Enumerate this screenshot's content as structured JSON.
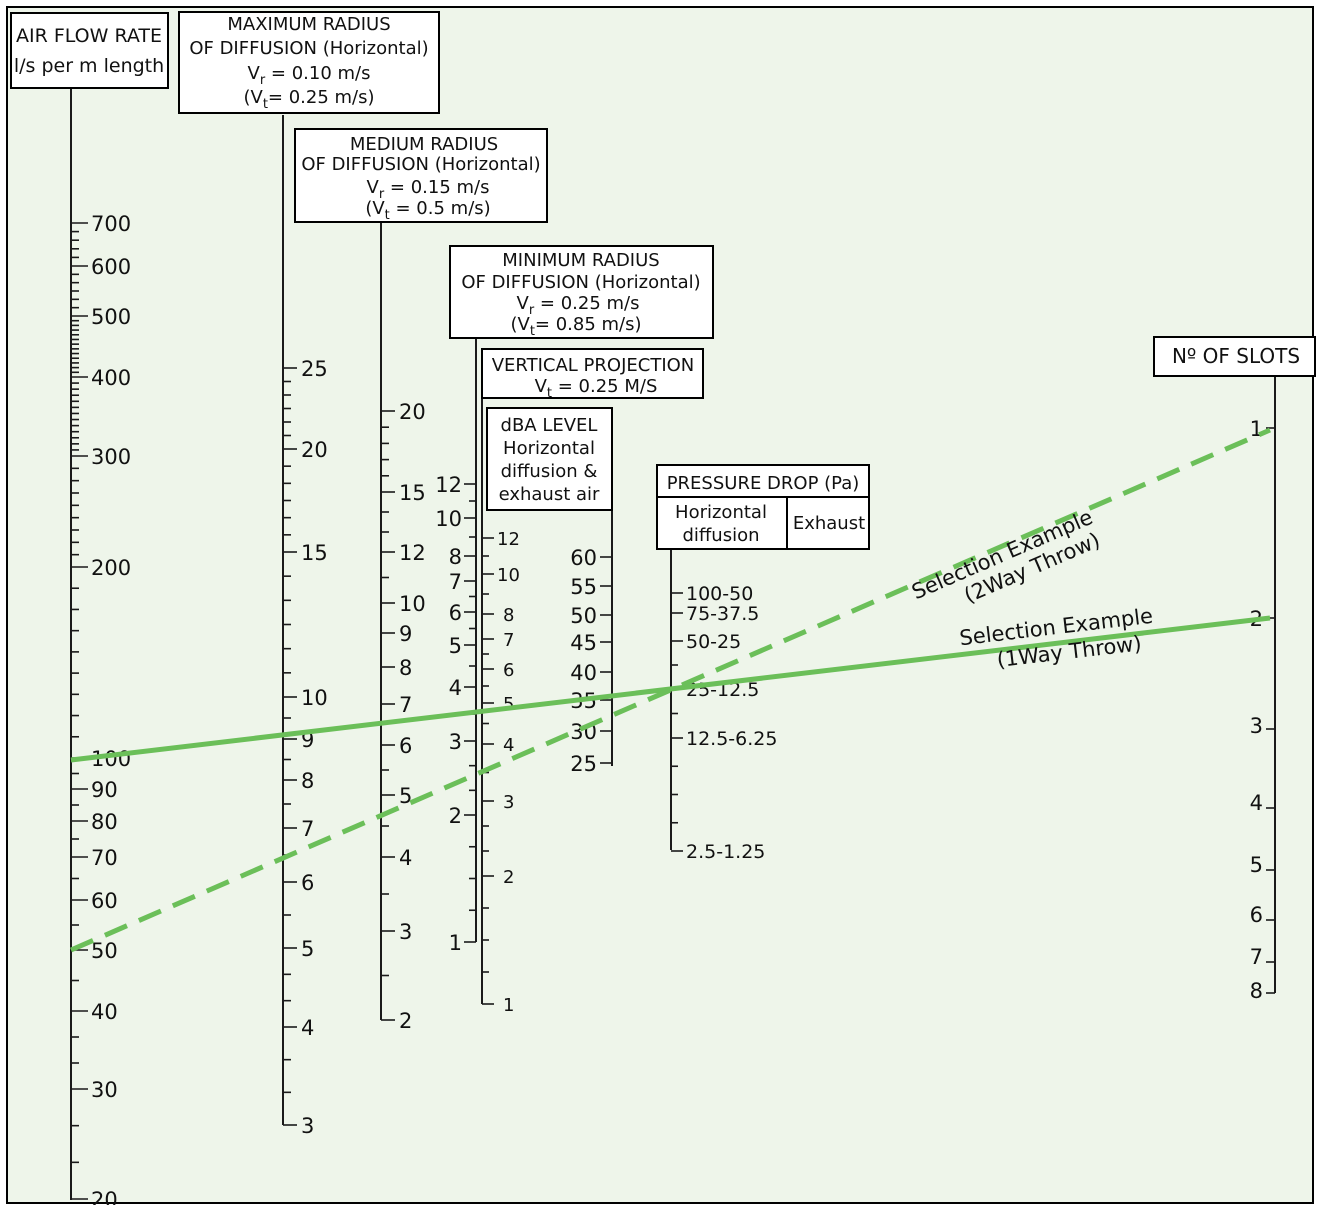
{
  "colors": {
    "background": "#eef5ea",
    "selection_line": "#6bbf59",
    "axis": "#1a1a1a",
    "box_fill": "#ffffff"
  },
  "headers": {
    "air_flow": {
      "line1": "AIR FLOW RATE",
      "line2": "l/s per m length"
    },
    "max_radius": {
      "line1": "MAXIMUM RADIUS",
      "line2": "OF DIFFUSION (Horizontal)",
      "line3_base": "V",
      "line3_sub": "r",
      "line3_rest": " = 0.10 m/s",
      "line4_pre": "(V",
      "line4_sub": "t",
      "line4_rest": "= 0.25 m/s)"
    },
    "med_radius": {
      "line1": "MEDIUM RADIUS",
      "line2": "OF DIFFUSION (Horizontal)",
      "line3_base": "V",
      "line3_sub": "r",
      "line3_rest": " = 0.15 m/s",
      "line4_pre": "(V",
      "line4_sub": "t",
      "line4_rest": " = 0.5 m/s)"
    },
    "min_radius": {
      "line1": "MINIMUM RADIUS",
      "line2": "OF DIFFUSION (Horizontal)",
      "line3_base": "V",
      "line3_sub": "r",
      "line3_rest": " = 0.25 m/s",
      "line4_pre": "(V",
      "line4_sub": "t",
      "line4_rest": "= 0.85 m/s)"
    },
    "vertical": {
      "line1": "VERTICAL PROJECTION",
      "line2_base": "V",
      "line2_sub": "t",
      "line2_rest": " = 0.25 M/S"
    },
    "dba": {
      "line1": "dBA LEVEL",
      "line2": "Horizontal",
      "line3": "diffusion &",
      "line4": "exhaust air"
    },
    "pressure": {
      "line1": "PRESSURE DROP (Pa)",
      "col1_line1": "Horizontal",
      "col1_line2": "diffusion",
      "col2": "Exhaust"
    },
    "slots": {
      "line1": "Nº OF SLOTS"
    }
  },
  "scales": {
    "air_flow": [
      "700",
      "600",
      "500",
      "400",
      "300",
      "200",
      "100",
      "90",
      "80",
      "70",
      "60",
      "50",
      "40",
      "30",
      "20"
    ],
    "max_radius": [
      "25",
      "20",
      "15",
      "10",
      "9",
      "8",
      "7",
      "6",
      "5",
      "4",
      "3"
    ],
    "med_radius": [
      "20",
      "15",
      "12",
      "10",
      "9",
      "8",
      "7",
      "6",
      "5",
      "4",
      "3",
      "2"
    ],
    "min_radius": [
      "12",
      "10",
      "8",
      "7",
      "6",
      "5",
      "4",
      "3",
      "2",
      "1"
    ],
    "vertical": [
      "12",
      "10",
      "8",
      "7",
      "6",
      "5",
      "4",
      "3",
      "2",
      "1"
    ],
    "dba": [
      "60",
      "55",
      "50",
      "45",
      "40",
      "35",
      "30",
      "25"
    ],
    "pressure": [
      "100-50",
      "75-37.5",
      "50-25",
      "25-12.5",
      "12.5-6.25",
      "2.5-1.25"
    ],
    "slots": [
      "1",
      "2",
      "3",
      "4",
      "5",
      "6",
      "7",
      "8"
    ]
  },
  "selection": {
    "two_way": {
      "line1": "Selection Example",
      "line2": "(2Way Throw)"
    },
    "one_way": {
      "line1": "Selection Example",
      "line2": "(1Way Throw)"
    }
  }
}
